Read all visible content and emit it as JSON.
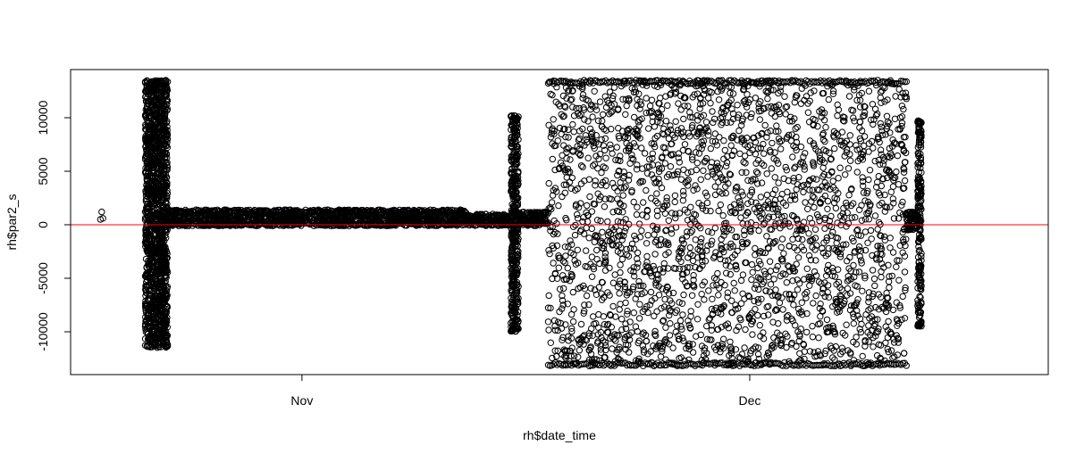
{
  "chart_data": {
    "type": "scatter",
    "title": "",
    "xlabel": "rh$date_time",
    "ylabel": "rh$par2_s",
    "x_axis": {
      "type": "date",
      "range": [
        "2015-10-16T12:00",
        "2015-12-21T00:00"
      ],
      "ticks": [
        {
          "date": "2015-11-01",
          "label": "Nov"
        },
        {
          "date": "2015-12-01",
          "label": "Dec"
        }
      ]
    },
    "y_axis": {
      "range": [
        -14000,
        14500
      ],
      "ticks": [
        {
          "value": -10000,
          "label": "-10000"
        },
        {
          "value": -5000,
          "label": "-5000"
        },
        {
          "value": 0,
          "label": "0"
        },
        {
          "value": 5000,
          "label": "5000"
        },
        {
          "value": 10000,
          "label": "10000"
        }
      ]
    },
    "reference_line": {
      "y": 0,
      "color": "#ff0000"
    },
    "marker": {
      "shape": "open-circle",
      "color": "#000000"
    },
    "series": [
      {
        "points": [
          {
            "x": "2015-10-18T12:00",
            "y": 500
          },
          {
            "x": "2015-10-18T14:00",
            "y": 1200
          },
          {
            "x": "2015-10-18T16:00",
            "y": 600
          }
        ],
        "segments": [
          {
            "start": "2015-10-21T12:00",
            "end": "2015-10-23T00:00",
            "min": -11500,
            "max": 13500
          },
          {
            "start": "2015-10-23T00:00",
            "end": "2015-11-05T00:00",
            "min": -100,
            "max": 1400
          },
          {
            "start": "2015-11-05T00:00",
            "end": "2015-11-12T00:00",
            "min": -100,
            "max": 1400
          },
          {
            "start": "2015-11-12T00:00",
            "end": "2015-11-15T00:00",
            "min": -100,
            "max": 1000
          },
          {
            "start": "2015-11-15T00:00",
            "end": "2015-11-15T12:00",
            "min": -10000,
            "max": 10200
          },
          {
            "start": "2015-11-15T12:00",
            "end": "2015-11-17T12:00",
            "min": -100,
            "max": 1200
          },
          {
            "start": "2015-11-17T12:00",
            "end": "2015-12-11T12:00",
            "min": -13200,
            "max": 13500
          },
          {
            "start": "2015-12-11T12:00",
            "end": "2015-12-12T06:00",
            "min": -500,
            "max": 1200
          },
          {
            "start": "2015-12-12T06:00",
            "end": "2015-12-12T12:00",
            "min": -9500,
            "max": 9800
          }
        ]
      }
    ],
    "grid": false,
    "legend": "none"
  }
}
